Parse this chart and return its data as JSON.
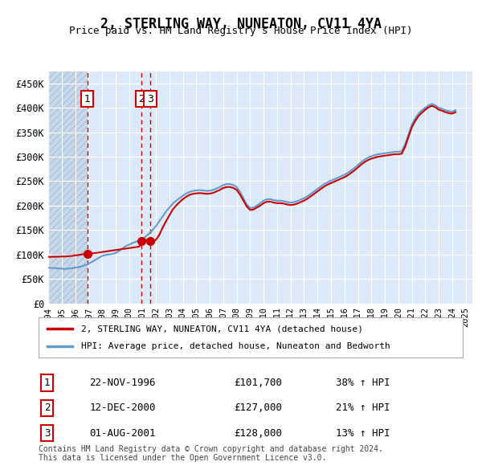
{
  "title": "2, STERLING WAY, NUNEATON, CV11 4YA",
  "subtitle": "Price paid vs. HM Land Registry's House Price Index (HPI)",
  "ylabel": "",
  "background_color": "#dce9f8",
  "plot_bg_color": "#dce9f8",
  "hatch_color": "#c0d0e8",
  "grid_color": "#ffffff",
  "legend_label_red": "2, STERLING WAY, NUNEATON, CV11 4YA (detached house)",
  "legend_label_blue": "HPI: Average price, detached house, Nuneaton and Bedworth",
  "footer": "Contains HM Land Registry data © Crown copyright and database right 2024.\nThis data is licensed under the Open Government Licence v3.0.",
  "sales": [
    {
      "num": 1,
      "date_str": "22-NOV-1996",
      "price": 101700,
      "hpi_pct": "38% ↑ HPI",
      "x_year": 1996.9
    },
    {
      "num": 2,
      "date_str": "12-DEC-2000",
      "price": 127000,
      "hpi_pct": "21% ↑ HPI",
      "x_year": 2000.95
    },
    {
      "num": 3,
      "date_str": "01-AUG-2001",
      "price": 128000,
      "hpi_pct": "13% ↑ HPI",
      "x_year": 2001.58
    }
  ],
  "hpi_data": {
    "years": [
      1994.0,
      1994.25,
      1994.5,
      1994.75,
      1995.0,
      1995.25,
      1995.5,
      1995.75,
      1996.0,
      1996.25,
      1996.5,
      1996.75,
      1997.0,
      1997.25,
      1997.5,
      1997.75,
      1998.0,
      1998.25,
      1998.5,
      1998.75,
      1999.0,
      1999.25,
      1999.5,
      1999.75,
      2000.0,
      2000.25,
      2000.5,
      2000.75,
      2001.0,
      2001.25,
      2001.5,
      2001.75,
      2002.0,
      2002.25,
      2002.5,
      2002.75,
      2003.0,
      2003.25,
      2003.5,
      2003.75,
      2004.0,
      2004.25,
      2004.5,
      2004.75,
      2005.0,
      2005.25,
      2005.5,
      2005.75,
      2006.0,
      2006.25,
      2006.5,
      2006.75,
      2007.0,
      2007.25,
      2007.5,
      2007.75,
      2008.0,
      2008.25,
      2008.5,
      2008.75,
      2009.0,
      2009.25,
      2009.5,
      2009.75,
      2010.0,
      2010.25,
      2010.5,
      2010.75,
      2011.0,
      2011.25,
      2011.5,
      2011.75,
      2012.0,
      2012.25,
      2012.5,
      2012.75,
      2013.0,
      2013.25,
      2013.5,
      2013.75,
      2014.0,
      2014.25,
      2014.5,
      2014.75,
      2015.0,
      2015.25,
      2015.5,
      2015.75,
      2016.0,
      2016.25,
      2016.5,
      2016.75,
      2017.0,
      2017.25,
      2017.5,
      2017.75,
      2018.0,
      2018.25,
      2018.5,
      2018.75,
      2019.0,
      2019.25,
      2019.5,
      2019.75,
      2020.0,
      2020.25,
      2020.5,
      2020.75,
      2021.0,
      2021.25,
      2021.5,
      2021.75,
      2022.0,
      2022.25,
      2022.5,
      2022.75,
      2023.0,
      2023.25,
      2023.5,
      2023.75,
      2024.0,
      2024.25
    ],
    "values": [
      73000,
      72500,
      72000,
      71500,
      71000,
      70500,
      71000,
      72000,
      73000,
      74000,
      76000,
      78000,
      81000,
      85000,
      89000,
      93000,
      97000,
      99000,
      100000,
      101000,
      103000,
      107000,
      112000,
      117000,
      120000,
      123000,
      126000,
      129000,
      132000,
      137000,
      143000,
      150000,
      158000,
      168000,
      178000,
      188000,
      196000,
      204000,
      210000,
      215000,
      220000,
      225000,
      228000,
      230000,
      231000,
      231500,
      231000,
      230000,
      230500,
      232000,
      235000,
      238000,
      242000,
      244000,
      244000,
      242000,
      238000,
      228000,
      215000,
      202000,
      195000,
      196000,
      200000,
      205000,
      210000,
      213000,
      213000,
      211000,
      210000,
      210000,
      209000,
      207000,
      206000,
      207000,
      209000,
      212000,
      215000,
      219000,
      224000,
      229000,
      234000,
      239000,
      244000,
      248000,
      251000,
      254000,
      257000,
      260000,
      263000,
      267000,
      272000,
      277000,
      283000,
      289000,
      294000,
      298000,
      301000,
      303000,
      305000,
      306000,
      307000,
      308000,
      309000,
      310000,
      310000,
      311000,
      325000,
      345000,
      365000,
      378000,
      388000,
      395000,
      400000,
      405000,
      408000,
      405000,
      400000,
      398000,
      395000,
      393000,
      392000,
      395000
    ]
  },
  "price_paid_data": {
    "years": [
      1994.0,
      1994.25,
      1994.5,
      1994.75,
      1995.0,
      1995.25,
      1995.5,
      1995.75,
      1996.0,
      1996.25,
      1996.5,
      1996.75,
      1997.0,
      1997.25,
      1997.5,
      1997.75,
      1998.0,
      1998.25,
      1998.5,
      1998.75,
      1999.0,
      1999.25,
      1999.5,
      1999.75,
      2000.0,
      2000.25,
      2000.5,
      2000.75,
      2001.0,
      2001.25,
      2001.5,
      2001.75,
      2002.0,
      2002.25,
      2002.5,
      2002.75,
      2003.0,
      2003.25,
      2003.5,
      2003.75,
      2004.0,
      2004.25,
      2004.5,
      2004.75,
      2005.0,
      2005.25,
      2005.5,
      2005.75,
      2006.0,
      2006.25,
      2006.5,
      2006.75,
      2007.0,
      2007.25,
      2007.5,
      2007.75,
      2008.0,
      2008.25,
      2008.5,
      2008.75,
      2009.0,
      2009.25,
      2009.5,
      2009.75,
      2010.0,
      2010.25,
      2010.5,
      2010.75,
      2011.0,
      2011.25,
      2011.5,
      2011.75,
      2012.0,
      2012.25,
      2012.5,
      2012.75,
      2013.0,
      2013.25,
      2013.5,
      2013.75,
      2014.0,
      2014.25,
      2014.5,
      2014.75,
      2015.0,
      2015.25,
      2015.5,
      2015.75,
      2016.0,
      2016.25,
      2016.5,
      2016.75,
      2017.0,
      2017.25,
      2017.5,
      2017.75,
      2018.0,
      2018.25,
      2018.5,
      2018.75,
      2019.0,
      2019.25,
      2019.5,
      2019.75,
      2020.0,
      2020.25,
      2020.5,
      2020.75,
      2021.0,
      2021.25,
      2021.5,
      2021.75,
      2022.0,
      2022.25,
      2022.5,
      2022.75,
      2023.0,
      2023.25,
      2023.5,
      2023.75,
      2024.0,
      2024.25
    ],
    "values": [
      95000,
      95200,
      95400,
      95600,
      95800,
      96000,
      96500,
      97000,
      98000,
      99000,
      100000,
      101000,
      101700,
      102000,
      103000,
      104000,
      105000,
      106000,
      107000,
      108000,
      109000,
      110000,
      111000,
      112000,
      113000,
      114000,
      115000,
      116000,
      127000,
      130000,
      128000,
      126000,
      130000,
      140000,
      155000,
      168000,
      180000,
      192000,
      200000,
      207000,
      213000,
      218000,
      222000,
      224000,
      225000,
      225500,
      225000,
      224000,
      224500,
      226000,
      229000,
      232000,
      236000,
      238000,
      238000,
      236000,
      232000,
      222000,
      210000,
      198000,
      191000,
      192000,
      196000,
      200000,
      205000,
      208000,
      208000,
      206000,
      205000,
      205000,
      204000,
      202000,
      201000,
      202000,
      204000,
      207000,
      210000,
      214000,
      219000,
      224000,
      229000,
      234000,
      239000,
      243000,
      246000,
      249000,
      252000,
      255000,
      258000,
      262000,
      267000,
      272000,
      278000,
      284000,
      289000,
      293000,
      296000,
      298000,
      300000,
      301000,
      302000,
      303000,
      304000,
      305000,
      305000,
      306000,
      320000,
      340000,
      360000,
      373000,
      383000,
      390000,
      396000,
      401000,
      404000,
      401000,
      396000,
      394000,
      391000,
      389000,
      388000,
      391000
    ]
  },
  "yticks": [
    0,
    50000,
    100000,
    150000,
    200000,
    250000,
    300000,
    350000,
    400000,
    450000
  ],
  "ytick_labels": [
    "£0",
    "£50K",
    "£100K",
    "£150K",
    "£200K",
    "£250K",
    "£300K",
    "£350K",
    "£400K",
    "£450K"
  ],
  "xmin": 1994.0,
  "xmax": 2025.5,
  "ymin": 0,
  "ymax": 475000,
  "xtick_years": [
    1994,
    1995,
    1996,
    1997,
    1998,
    1999,
    2000,
    2001,
    2002,
    2003,
    2004,
    2005,
    2006,
    2007,
    2008,
    2009,
    2010,
    2011,
    2012,
    2013,
    2014,
    2015,
    2016,
    2017,
    2018,
    2019,
    2020,
    2021,
    2022,
    2023,
    2024,
    2025
  ],
  "red_color": "#cc0000",
  "blue_color": "#6699cc",
  "sale_marker_color": "#cc0000",
  "dashed_vline_color": "#cc0000"
}
